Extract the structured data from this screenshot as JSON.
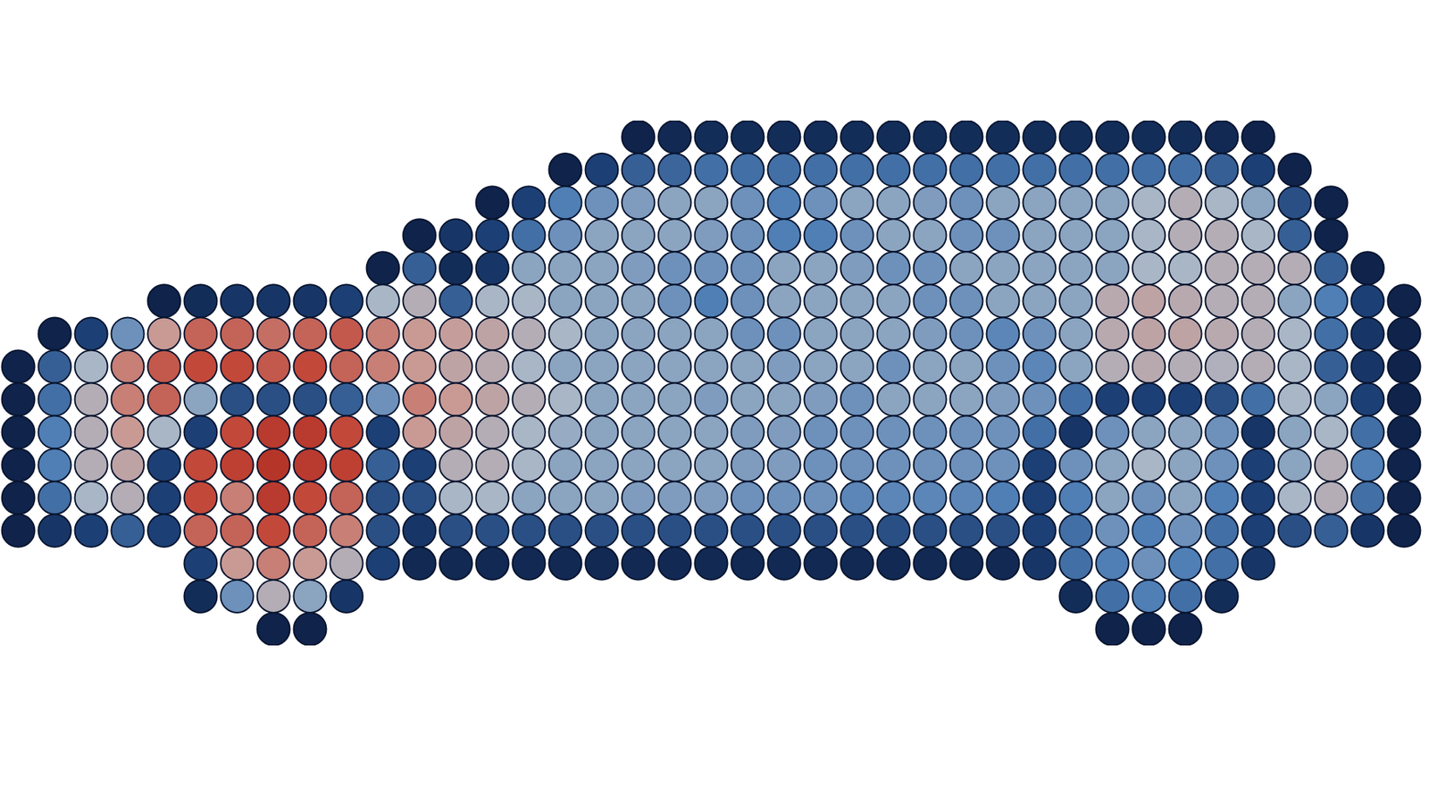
{
  "chart_data": {
    "type": "scatter",
    "x": [
      0,
      1,
      2,
      3,
      4,
      5,
      6,
      7,
      8,
      9,
      10,
      11,
      12,
      13,
      14,
      15,
      16,
      17,
      18,
      19,
      20,
      21,
      22,
      23,
      24,
      25,
      26,
      27,
      28,
      29,
      30,
      31,
      32,
      33,
      34,
      35,
      36,
      37,
      38
    ],
    "y": [
      15,
      14,
      13,
      12,
      11,
      10,
      9,
      8,
      7,
      6,
      5,
      4,
      3,
      2,
      1,
      0
    ],
    "values": [
      [
        null,
        null,
        null,
        null,
        null,
        null,
        null,
        null,
        null,
        null,
        null,
        null,
        null,
        null,
        null,
        null,
        null,
        0.05,
        0.08,
        0.1,
        0.1,
        0.1,
        0.1,
        0.1,
        0.1,
        0.1,
        0.1,
        0.1,
        0.1,
        0.1,
        0.1,
        0.1,
        0.1,
        0.08,
        0.05,
        null,
        null,
        null,
        null
      ],
      [
        null,
        null,
        null,
        null,
        null,
        null,
        null,
        null,
        null,
        null,
        null,
        null,
        null,
        null,
        null,
        0.05,
        0.2,
        0.3,
        0.32,
        0.35,
        0.35,
        0.35,
        0.35,
        0.35,
        0.35,
        0.35,
        0.35,
        0.35,
        0.35,
        0.35,
        0.35,
        0.35,
        0.35,
        0.3,
        0.2,
        0.05,
        null,
        null,
        null
      ],
      [
        null,
        null,
        null,
        null,
        null,
        null,
        null,
        null,
        null,
        null,
        null,
        null,
        null,
        0.05,
        0.2,
        0.4,
        0.45,
        0.48,
        0.5,
        0.5,
        0.45,
        0.4,
        0.45,
        0.5,
        0.5,
        0.48,
        0.45,
        0.5,
        0.5,
        0.5,
        0.5,
        0.55,
        0.6,
        0.55,
        0.5,
        0.25,
        0.05,
        null,
        null
      ],
      [
        null,
        null,
        null,
        null,
        null,
        null,
        null,
        null,
        null,
        null,
        null,
        0.05,
        0.15,
        0.2,
        0.35,
        0.45,
        0.5,
        0.5,
        0.5,
        0.48,
        0.45,
        0.4,
        0.4,
        0.45,
        0.5,
        0.5,
        0.45,
        0.45,
        0.5,
        0.5,
        0.5,
        0.55,
        0.6,
        0.6,
        0.55,
        0.3,
        0.05,
        null,
        null
      ],
      [
        null,
        null,
        null,
        null,
        null,
        null,
        null,
        null,
        null,
        null,
        0.05,
        0.3,
        0.1,
        0.15,
        0.5,
        0.5,
        0.5,
        0.48,
        0.45,
        0.45,
        0.45,
        0.5,
        0.5,
        0.48,
        0.45,
        0.45,
        0.5,
        0.5,
        0.5,
        0.5,
        0.5,
        0.55,
        0.55,
        0.6,
        0.6,
        0.6,
        0.3,
        0.05,
        null
      ],
      [
        null,
        null,
        null,
        null,
        0.05,
        0.1,
        0.15,
        0.15,
        0.15,
        0.2,
        0.55,
        0.6,
        0.3,
        0.55,
        0.55,
        0.5,
        0.5,
        0.5,
        0.45,
        0.4,
        0.45,
        0.5,
        0.5,
        0.5,
        0.5,
        0.45,
        0.45,
        0.5,
        0.5,
        0.5,
        0.62,
        0.65,
        0.62,
        0.6,
        0.6,
        0.5,
        0.4,
        0.2,
        0.05
      ],
      [
        null,
        0.05,
        0.2,
        0.45,
        0.7,
        0.8,
        0.8,
        0.78,
        0.8,
        0.82,
        0.75,
        0.7,
        0.68,
        0.65,
        0.6,
        0.55,
        0.5,
        0.5,
        0.5,
        0.5,
        0.45,
        0.45,
        0.5,
        0.5,
        0.5,
        0.48,
        0.45,
        0.42,
        0.45,
        0.5,
        0.62,
        0.65,
        0.65,
        0.62,
        0.6,
        0.55,
        0.35,
        0.15,
        0.05
      ],
      [
        0.05,
        0.3,
        0.55,
        0.75,
        0.82,
        0.85,
        0.85,
        0.82,
        0.85,
        0.8,
        0.75,
        0.7,
        0.65,
        0.62,
        0.55,
        0.5,
        0.5,
        0.5,
        0.5,
        0.5,
        0.5,
        0.48,
        0.5,
        0.5,
        0.45,
        0.5,
        0.5,
        0.45,
        0.42,
        0.5,
        0.6,
        0.62,
        0.6,
        0.58,
        0.6,
        0.55,
        0.3,
        0.15,
        0.05
      ],
      [
        0.05,
        0.35,
        0.6,
        0.75,
        0.8,
        0.5,
        0.25,
        0.25,
        0.25,
        0.3,
        0.45,
        0.75,
        0.7,
        0.65,
        0.6,
        0.55,
        0.5,
        0.5,
        0.5,
        0.48,
        0.5,
        0.5,
        0.48,
        0.45,
        0.5,
        0.5,
        0.5,
        0.48,
        0.45,
        0.35,
        0.2,
        0.2,
        0.2,
        0.25,
        0.35,
        0.55,
        0.5,
        0.2,
        0.05
      ],
      [
        0.05,
        0.4,
        0.6,
        0.7,
        0.55,
        0.2,
        0.85,
        0.9,
        0.9,
        0.85,
        0.2,
        0.7,
        0.65,
        0.6,
        0.55,
        0.52,
        0.5,
        0.5,
        0.5,
        0.5,
        0.48,
        0.48,
        0.45,
        0.45,
        0.45,
        0.45,
        0.45,
        0.45,
        0.35,
        0.15,
        0.45,
        0.5,
        0.5,
        0.45,
        0.15,
        0.5,
        0.55,
        0.35,
        0.05
      ],
      [
        0.05,
        0.4,
        0.6,
        0.65,
        0.2,
        0.85,
        0.88,
        0.92,
        0.9,
        0.88,
        0.3,
        0.2,
        0.6,
        0.6,
        0.55,
        0.5,
        0.5,
        0.5,
        0.5,
        0.5,
        0.48,
        0.48,
        0.45,
        0.45,
        0.45,
        0.45,
        0.45,
        0.45,
        0.2,
        0.45,
        0.5,
        0.55,
        0.5,
        0.45,
        0.2,
        0.5,
        0.6,
        0.4,
        0.05
      ],
      [
        0.05,
        0.35,
        0.55,
        0.6,
        0.2,
        0.85,
        0.75,
        0.9,
        0.85,
        0.8,
        0.25,
        0.25,
        0.55,
        0.55,
        0.5,
        0.5,
        0.5,
        0.48,
        0.48,
        0.48,
        0.45,
        0.45,
        0.45,
        0.42,
        0.42,
        0.42,
        0.42,
        0.4,
        0.2,
        0.4,
        0.5,
        0.45,
        0.5,
        0.4,
        0.2,
        0.55,
        0.6,
        0.35,
        0.05
      ],
      [
        0.05,
        0.15,
        0.2,
        0.3,
        0.2,
        0.8,
        0.8,
        0.85,
        0.8,
        0.75,
        0.25,
        0.15,
        0.25,
        0.25,
        0.25,
        0.25,
        0.25,
        0.25,
        0.25,
        0.25,
        0.25,
        0.25,
        0.25,
        0.25,
        0.25,
        0.25,
        0.25,
        0.25,
        0.2,
        0.35,
        0.45,
        0.4,
        0.45,
        0.35,
        0.2,
        0.25,
        0.3,
        0.15,
        0.05
      ],
      [
        null,
        null,
        null,
        null,
        null,
        0.2,
        0.7,
        0.75,
        0.7,
        0.6,
        0.2,
        0.08,
        0.08,
        0.08,
        0.08,
        0.08,
        0.08,
        0.08,
        0.08,
        0.08,
        0.08,
        0.08,
        0.08,
        0.08,
        0.08,
        0.08,
        0.08,
        0.08,
        0.15,
        0.35,
        0.4,
        0.45,
        0.4,
        0.35,
        0.15,
        null,
        null,
        null,
        null
      ],
      [
        null,
        null,
        null,
        null,
        null,
        0.1,
        0.45,
        0.6,
        0.5,
        0.15,
        null,
        null,
        null,
        null,
        null,
        null,
        null,
        null,
        null,
        null,
        null,
        null,
        null,
        null,
        null,
        null,
        null,
        null,
        null,
        0.1,
        0.35,
        0.4,
        0.35,
        0.1,
        null,
        null,
        null,
        null,
        null
      ],
      [
        null,
        null,
        null,
        null,
        null,
        null,
        null,
        0.05,
        0.05,
        null,
        null,
        null,
        null,
        null,
        null,
        null,
        null,
        null,
        null,
        null,
        null,
        null,
        null,
        null,
        null,
        null,
        null,
        null,
        null,
        null,
        0.05,
        0.05,
        0.05,
        null,
        null,
        null,
        null,
        null,
        null
      ]
    ],
    "xlim": [
      -0.5,
      38.5
    ],
    "ylim": [
      -0.5,
      15.5
    ],
    "clim": [
      0,
      1
    ],
    "tick_labels": false,
    "grid": false
  }
}
